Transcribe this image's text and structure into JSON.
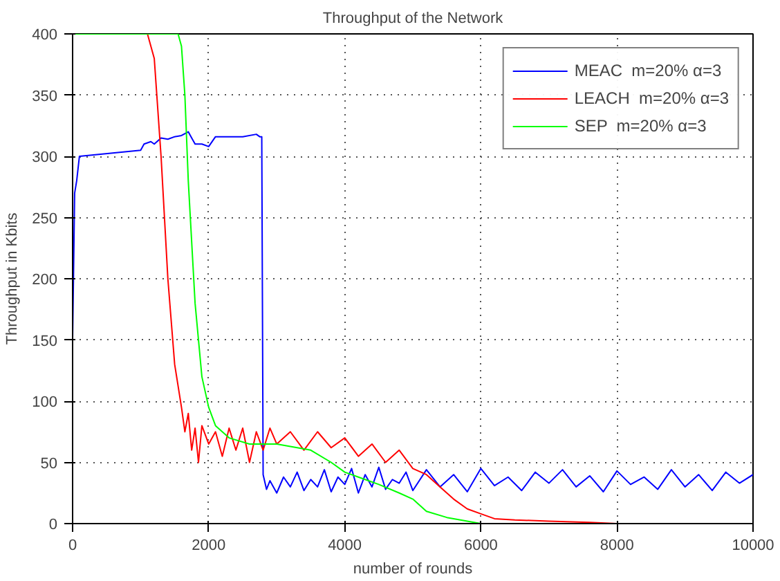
{
  "chart_data": {
    "type": "line",
    "title": "Throughput of the Network",
    "xlabel": "number of rounds",
    "ylabel": "Throughput in Kbits",
    "xlim": [
      0,
      10000
    ],
    "ylim": [
      0,
      400
    ],
    "xticks": [
      0,
      2000,
      4000,
      6000,
      8000,
      10000
    ],
    "yticks": [
      0,
      50,
      100,
      150,
      200,
      250,
      300,
      350,
      400
    ],
    "grid": true,
    "legend": "top right",
    "line_style": "solid",
    "marker": "none",
    "series": [
      {
        "name": "MEAC  m=20% α=3",
        "color": "#0000ff",
        "x": [
          0,
          30,
          60,
          100,
          1000,
          1050,
          1150,
          1200,
          1300,
          1400,
          1500,
          1600,
          1700,
          1750,
          1800,
          1900,
          2000,
          2100,
          2200,
          2500,
          2700,
          2750,
          2780,
          2800,
          2850,
          2900,
          3000,
          3100,
          3200,
          3300,
          3400,
          3500,
          3600,
          3700,
          3800,
          3900,
          4000,
          4100,
          4200,
          4300,
          4400,
          4500,
          4600,
          4700,
          4800,
          4900,
          5000,
          5200,
          5400,
          5600,
          5800,
          6000,
          6200,
          6400,
          6600,
          6800,
          7000,
          7200,
          7400,
          7600,
          7800,
          8000,
          8200,
          8400,
          8600,
          8800,
          9000,
          9200,
          9400,
          9600,
          9800,
          10000
        ],
        "values": [
          150,
          270,
          280,
          300,
          305,
          310,
          312,
          310,
          315,
          314,
          316,
          317,
          320,
          315,
          310,
          310,
          308,
          316,
          316,
          316,
          318,
          316,
          316,
          40,
          28,
          35,
          25,
          38,
          30,
          42,
          27,
          36,
          30,
          44,
          26,
          38,
          32,
          45,
          25,
          40,
          30,
          46,
          28,
          36,
          33,
          42,
          27,
          44,
          30,
          40,
          26,
          45,
          31,
          38,
          27,
          42,
          33,
          44,
          30,
          39,
          26,
          43,
          32,
          38,
          28,
          44,
          30,
          40,
          27,
          42,
          33,
          40
        ]
      },
      {
        "name": "LEACH  m=20% α=3",
        "color": "#ff0000",
        "x": [
          0,
          1100,
          1200,
          1300,
          1400,
          1500,
          1600,
          1650,
          1700,
          1750,
          1800,
          1850,
          1900,
          2000,
          2100,
          2200,
          2300,
          2400,
          2500,
          2600,
          2700,
          2800,
          2900,
          3000,
          3200,
          3400,
          3600,
          3800,
          4000,
          4200,
          4400,
          4600,
          4800,
          5000,
          5200,
          5400,
          5600,
          5800,
          6000,
          6200,
          6500,
          7000,
          7600,
          8000,
          10000
        ],
        "values": [
          400,
          400,
          380,
          300,
          200,
          130,
          95,
          75,
          90,
          60,
          78,
          50,
          80,
          65,
          75,
          55,
          78,
          60,
          78,
          50,
          75,
          60,
          78,
          65,
          75,
          60,
          75,
          62,
          70,
          55,
          65,
          50,
          60,
          45,
          40,
          30,
          20,
          12,
          8,
          4,
          3,
          2,
          1,
          0,
          0
        ]
      },
      {
        "name": "SEP  m=20% α=3",
        "color": "#00ff00",
        "x": [
          0,
          1550,
          1600,
          1650,
          1700,
          1800,
          1900,
          2000,
          2100,
          2300,
          2600,
          3000,
          3500,
          3800,
          4000,
          4200,
          4500,
          4800,
          5000,
          5200,
          5500,
          5800,
          6000,
          10000
        ],
        "values": [
          400,
          400,
          390,
          350,
          280,
          180,
          120,
          95,
          80,
          70,
          65,
          65,
          60,
          50,
          42,
          38,
          32,
          25,
          20,
          10,
          5,
          2,
          0,
          0
        ]
      }
    ]
  }
}
